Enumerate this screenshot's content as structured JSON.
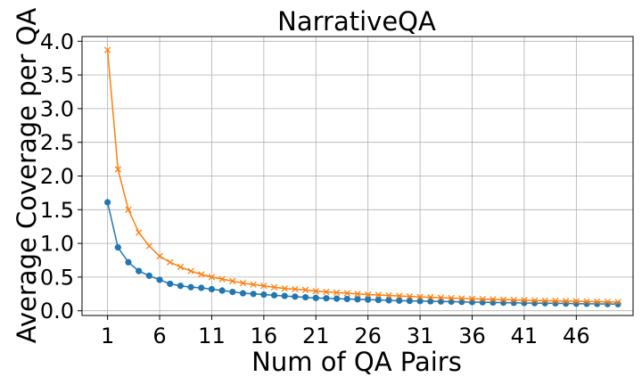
{
  "chart_data": {
    "type": "line",
    "title": "NarrativeQA",
    "xlabel": "Num of QA Pairs",
    "ylabel": "Average Coverage per QA",
    "xlim": [
      -1.45,
      51.45
    ],
    "ylim": [
      -0.07,
      4.07
    ],
    "xticks": [
      1,
      6,
      11,
      16,
      21,
      26,
      31,
      36,
      41,
      46
    ],
    "yticks": [
      0.0,
      0.5,
      1.0,
      1.5,
      2.0,
      2.5,
      3.0,
      3.5,
      4.0
    ],
    "grid": true,
    "x": [
      1,
      2,
      3,
      4,
      5,
      6,
      7,
      8,
      9,
      10,
      11,
      12,
      13,
      14,
      15,
      16,
      17,
      18,
      19,
      20,
      21,
      22,
      23,
      24,
      25,
      26,
      27,
      28,
      29,
      30,
      31,
      32,
      33,
      34,
      35,
      36,
      37,
      38,
      39,
      40,
      41,
      42,
      43,
      44,
      45,
      46,
      47,
      48,
      49,
      50
    ],
    "series": [
      {
        "color": "#1f77b4",
        "marker": "circle",
        "values": [
          1.61,
          0.94,
          0.72,
          0.59,
          0.52,
          0.46,
          0.4,
          0.37,
          0.35,
          0.34,
          0.32,
          0.3,
          0.28,
          0.26,
          0.25,
          0.24,
          0.23,
          0.22,
          0.21,
          0.2,
          0.19,
          0.185,
          0.18,
          0.175,
          0.17,
          0.165,
          0.16,
          0.155,
          0.15,
          0.147,
          0.144,
          0.141,
          0.138,
          0.135,
          0.132,
          0.129,
          0.126,
          0.123,
          0.12,
          0.118,
          0.116,
          0.114,
          0.112,
          0.11,
          0.108,
          0.106,
          0.104,
          0.102,
          0.1,
          0.098
        ]
      },
      {
        "color": "#ff7f0e",
        "marker": "x",
        "values": [
          3.87,
          2.1,
          1.5,
          1.16,
          0.96,
          0.81,
          0.72,
          0.65,
          0.59,
          0.54,
          0.5,
          0.47,
          0.44,
          0.41,
          0.39,
          0.37,
          0.35,
          0.33,
          0.32,
          0.31,
          0.29,
          0.28,
          0.27,
          0.26,
          0.25,
          0.24,
          0.235,
          0.227,
          0.22,
          0.213,
          0.206,
          0.2,
          0.194,
          0.188,
          0.183,
          0.178,
          0.173,
          0.169,
          0.165,
          0.161,
          0.157,
          0.153,
          0.15,
          0.147,
          0.144,
          0.141,
          0.138,
          0.135,
          0.132,
          0.129
        ]
      }
    ]
  }
}
